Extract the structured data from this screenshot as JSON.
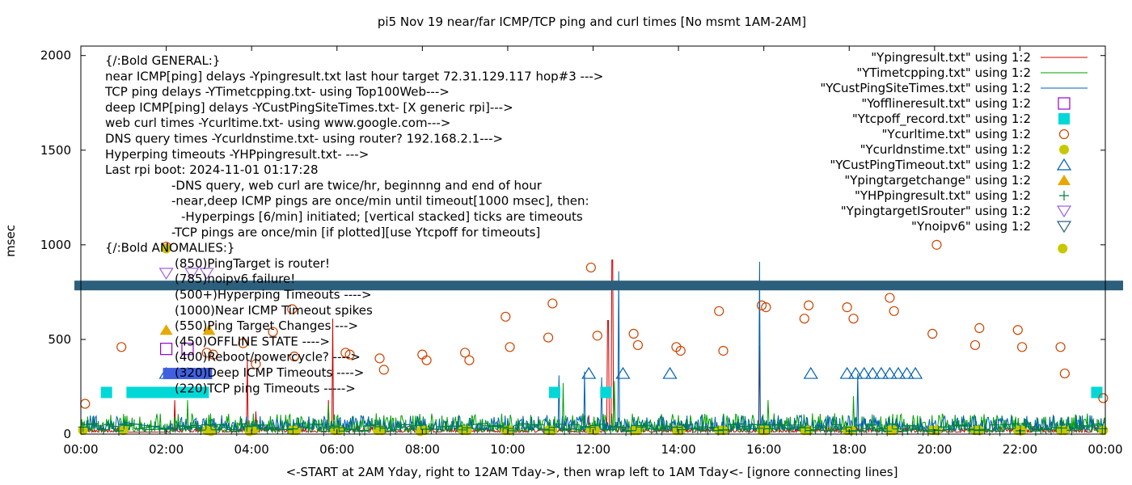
{
  "chart_data": {
    "type": "scatter",
    "title": "pi5 Nov 19  near/far ICMP/TCP ping and curl times [No msmt 1AM-2AM]",
    "xlabel": "<-START at 2AM Yday, right to 12AM Tday->, then wrap left to 1AM Tday<- [ignore connecting lines]",
    "ylabel": "msec",
    "xlim": [
      0,
      24
    ],
    "ylim": [
      0,
      2050
    ],
    "x_ticks": [
      {
        "v": 0,
        "label": "00:00"
      },
      {
        "v": 2,
        "label": "02:00"
      },
      {
        "v": 4,
        "label": "04:00"
      },
      {
        "v": 6,
        "label": "06:00"
      },
      {
        "v": 8,
        "label": "08:00"
      },
      {
        "v": 10,
        "label": "10:00"
      },
      {
        "v": 12,
        "label": "12:00"
      },
      {
        "v": 14,
        "label": "14:00"
      },
      {
        "v": 16,
        "label": "16:00"
      },
      {
        "v": 18,
        "label": "18:00"
      },
      {
        "v": 20,
        "label": "20:00"
      },
      {
        "v": 22,
        "label": "22:00"
      },
      {
        "v": 24,
        "label": "00:00"
      }
    ],
    "y_ticks": [
      {
        "v": 0,
        "label": "0"
      },
      {
        "v": 500,
        "label": "500"
      },
      {
        "v": 1000,
        "label": "1000"
      },
      {
        "v": 1500,
        "label": "1500"
      },
      {
        "v": 2000,
        "label": "2000"
      }
    ],
    "grid": false,
    "legend_position": "top-right",
    "annotations": [
      "{/:Bold GENERAL:}",
      "near ICMP[ping] delays -Ypingresult.txt last hour target 72.31.129.117 hop#3 --->",
      "TCP ping delays -YTimetcpping.txt- using Top100Web--->",
      "deep ICMP[ping] delays -YCustPingSiteTimes.txt- [X generic rpi]--->",
      "web curl times -Ycurltime.txt- using www.google.com--->",
      "DNS query times -Ycurldnstime.txt- using router? 192.168.2.1--->",
      "Hyperping timeouts -YHPpingresult.txt- --->",
      "Last rpi boot: 2024-11-01 01:17:28",
      "-DNS query, web curl are twice/hr, beginnng and end of hour",
      "-near,deep ICMP pings are once/min until timeout[1000 msec], then:",
      "-Hyperpings [6/min] initiated; [vertical stacked] ticks are timeouts",
      "-TCP pings are once/min [if plotted][use Ytcpoff for timeouts]",
      "{/:Bold ANOMALIES:}",
      "(850)PingTarget is router!",
      "(785)noipv6 failure!",
      "(500+)Hyperping Timeouts ---->",
      "(1000)Near ICMP Timeout spikes",
      "(550)Ping Target Changes --->",
      "(450)OFFLINE STATE ---->",
      "(400)Reboot/powercycle? ---->",
      "(320)Deep ICMP Timeouts ---->",
      "(220)TCP ping Timeouts ----->"
    ],
    "series": [
      {
        "name": "\"Ypingresult.txt\" using 1:2",
        "color": "#cc0000",
        "style": "line",
        "baseline_range": [
          10,
          40
        ],
        "spikes": [
          {
            "x": 2.2,
            "y": 180
          },
          {
            "x": 3.9,
            "y": 400
          },
          {
            "x": 4.1,
            "y": 120
          },
          {
            "x": 5.8,
            "y": 180
          },
          {
            "x": 5.9,
            "y": 610
          },
          {
            "x": 11.9,
            "y": 100
          },
          {
            "x": 12.35,
            "y": 600
          },
          {
            "x": 12.45,
            "y": 920
          },
          {
            "x": 15.9,
            "y": 470
          }
        ]
      },
      {
        "name": "\"YTimetcpping.txt\" using 1:2",
        "color": "#00a000",
        "style": "line",
        "baseline_range": [
          15,
          110
        ],
        "spikes": [
          {
            "x": 2.5,
            "y": 180
          },
          {
            "x": 5.8,
            "y": 160
          },
          {
            "x": 11.3,
            "y": 270
          },
          {
            "x": 12.5,
            "y": 280
          },
          {
            "x": 16.1,
            "y": 180
          },
          {
            "x": 18.1,
            "y": 200
          }
        ]
      },
      {
        "name": "\"YCustPingSiteTimes.txt\" using 1:2",
        "color": "#0060ad",
        "style": "line",
        "baseline_range": [
          20,
          100
        ],
        "spikes": [
          {
            "x": 11.2,
            "y": 310
          },
          {
            "x": 11.8,
            "y": 330
          },
          {
            "x": 12.2,
            "y": 300
          },
          {
            "x": 12.6,
            "y": 860
          },
          {
            "x": 15.9,
            "y": 910
          },
          {
            "x": 18.2,
            "y": 320
          }
        ]
      },
      {
        "name": "\"Yofflineresult.txt\" using 1:2",
        "color": "#9400d3",
        "style": "open-square",
        "points": [
          {
            "x": 2.0,
            "y": 450
          },
          {
            "x": 2.5,
            "y": 450
          }
        ]
      },
      {
        "name": "\"Ytcpoff_record.txt\" using 1:2",
        "color": "#00d8d8",
        "style": "filled-square",
        "points": [
          {
            "x": 0.6,
            "y": 220
          },
          {
            "x": 1.2,
            "y": 220
          },
          {
            "x": 1.5,
            "y": 220
          },
          {
            "x": 1.8,
            "y": 220
          },
          {
            "x": 2.1,
            "y": 220
          },
          {
            "x": 2.4,
            "y": 220
          },
          {
            "x": 2.7,
            "y": 220
          },
          {
            "x": 11.1,
            "y": 220
          },
          {
            "x": 12.3,
            "y": 220
          },
          {
            "x": 23.8,
            "y": 220
          }
        ]
      },
      {
        "name": "\"Ycurltime.txt\" using 1:2",
        "color": "#cc4400",
        "style": "open-circle",
        "points": [
          {
            "x": 0.1,
            "y": 160
          },
          {
            "x": 0.95,
            "y": 460
          },
          {
            "x": 2.0,
            "y": 990
          },
          {
            "x": 2.95,
            "y": 430
          },
          {
            "x": 3.1,
            "y": 420
          },
          {
            "x": 3.8,
            "y": 480
          },
          {
            "x": 4.1,
            "y": 370
          },
          {
            "x": 4.5,
            "y": 540
          },
          {
            "x": 4.95,
            "y": 660
          },
          {
            "x": 5.0,
            "y": 410
          },
          {
            "x": 6.2,
            "y": 430
          },
          {
            "x": 6.3,
            "y": 420
          },
          {
            "x": 7.0,
            "y": 400
          },
          {
            "x": 7.1,
            "y": 340
          },
          {
            "x": 8.0,
            "y": 420
          },
          {
            "x": 8.1,
            "y": 390
          },
          {
            "x": 9.0,
            "y": 430
          },
          {
            "x": 9.1,
            "y": 390
          },
          {
            "x": 9.95,
            "y": 620
          },
          {
            "x": 10.05,
            "y": 460
          },
          {
            "x": 10.95,
            "y": 510
          },
          {
            "x": 11.05,
            "y": 690
          },
          {
            "x": 11.95,
            "y": 880
          },
          {
            "x": 12.1,
            "y": 520
          },
          {
            "x": 12.95,
            "y": 530
          },
          {
            "x": 13.05,
            "y": 470
          },
          {
            "x": 13.95,
            "y": 460
          },
          {
            "x": 14.05,
            "y": 440
          },
          {
            "x": 14.95,
            "y": 650
          },
          {
            "x": 15.05,
            "y": 440
          },
          {
            "x": 15.95,
            "y": 680
          },
          {
            "x": 16.05,
            "y": 670
          },
          {
            "x": 16.95,
            "y": 610
          },
          {
            "x": 17.05,
            "y": 680
          },
          {
            "x": 17.95,
            "y": 670
          },
          {
            "x": 18.1,
            "y": 610
          },
          {
            "x": 18.95,
            "y": 720
          },
          {
            "x": 19.05,
            "y": 650
          },
          {
            "x": 19.95,
            "y": 530
          },
          {
            "x": 20.05,
            "y": 1000
          },
          {
            "x": 20.95,
            "y": 470
          },
          {
            "x": 21.05,
            "y": 560
          },
          {
            "x": 21.95,
            "y": 550
          },
          {
            "x": 22.05,
            "y": 460
          },
          {
            "x": 22.95,
            "y": 460
          },
          {
            "x": 23.05,
            "y": 320
          },
          {
            "x": 23.95,
            "y": 190
          }
        ]
      },
      {
        "name": "\"Ycurldnstime.txt\" using 1:2",
        "color": "#c8c800",
        "style": "filled-circle",
        "points": [
          {
            "x": 0.05,
            "y": 20
          },
          {
            "x": 1.0,
            "y": 20
          },
          {
            "x": 2.0,
            "y": 980
          },
          {
            "x": 2.95,
            "y": 20
          },
          {
            "x": 3.05,
            "y": 15
          },
          {
            "x": 3.95,
            "y": 15
          },
          {
            "x": 4.05,
            "y": 20
          },
          {
            "x": 4.95,
            "y": 20
          },
          {
            "x": 5.05,
            "y": 20
          },
          {
            "x": 5.95,
            "y": 20
          },
          {
            "x": 6.05,
            "y": 20
          },
          {
            "x": 6.95,
            "y": 20
          },
          {
            "x": 7.05,
            "y": 20
          },
          {
            "x": 7.95,
            "y": 15
          },
          {
            "x": 8.05,
            "y": 20
          },
          {
            "x": 8.95,
            "y": 20
          },
          {
            "x": 9.05,
            "y": 20
          },
          {
            "x": 9.95,
            "y": 20
          },
          {
            "x": 10.05,
            "y": 20
          },
          {
            "x": 10.95,
            "y": 20
          },
          {
            "x": 11.05,
            "y": 20
          },
          {
            "x": 11.95,
            "y": 25
          },
          {
            "x": 12.05,
            "y": 20
          },
          {
            "x": 12.95,
            "y": 20
          },
          {
            "x": 13.05,
            "y": 20
          },
          {
            "x": 13.95,
            "y": 20
          },
          {
            "x": 14.05,
            "y": 20
          },
          {
            "x": 14.95,
            "y": 20
          },
          {
            "x": 15.05,
            "y": 20
          },
          {
            "x": 15.95,
            "y": 20
          },
          {
            "x": 16.05,
            "y": 20
          },
          {
            "x": 16.95,
            "y": 20
          },
          {
            "x": 17.05,
            "y": 20
          },
          {
            "x": 17.95,
            "y": 20
          },
          {
            "x": 18.05,
            "y": 20
          },
          {
            "x": 18.95,
            "y": 20
          },
          {
            "x": 19.05,
            "y": 20
          },
          {
            "x": 19.95,
            "y": 20
          },
          {
            "x": 20.05,
            "y": 20
          },
          {
            "x": 20.95,
            "y": 20
          },
          {
            "x": 21.05,
            "y": 20
          },
          {
            "x": 21.95,
            "y": 20
          },
          {
            "x": 22.05,
            "y": 20
          },
          {
            "x": 22.95,
            "y": 20
          },
          {
            "x": 23.05,
            "y": 20
          },
          {
            "x": 23.95,
            "y": 20
          },
          {
            "x": 23.0,
            "y": 980
          }
        ]
      },
      {
        "name": "\"YCustPingTimeout.txt\" using 1:2",
        "color": "#0060ad",
        "style": "open-triangle-up",
        "points": [
          {
            "x": 2.0,
            "y": 320
          },
          {
            "x": 2.5,
            "y": 320
          },
          {
            "x": 11.9,
            "y": 320
          },
          {
            "x": 12.7,
            "y": 320
          },
          {
            "x": 13.8,
            "y": 320
          },
          {
            "x": 17.1,
            "y": 320
          },
          {
            "x": 17.95,
            "y": 320
          },
          {
            "x": 18.15,
            "y": 320
          },
          {
            "x": 18.35,
            "y": 320
          },
          {
            "x": 18.55,
            "y": 320
          },
          {
            "x": 18.75,
            "y": 320
          },
          {
            "x": 18.95,
            "y": 320
          },
          {
            "x": 19.15,
            "y": 320
          },
          {
            "x": 19.35,
            "y": 320
          },
          {
            "x": 19.55,
            "y": 320
          }
        ]
      },
      {
        "name": "\"Ypingtargetchange\" using 1:2",
        "color": "#e8a800",
        "style": "filled-triangle-up",
        "points": [
          {
            "x": 2.0,
            "y": 550
          },
          {
            "x": 3.0,
            "y": 550
          }
        ]
      },
      {
        "name": "\"YHPpingresult.txt\" using 1:2",
        "color": "#008040",
        "style": "plus",
        "points_note": "vertical stacked ticks near baseline (0-60) across the day"
      },
      {
        "name": "\"YpingtargetISrouter\" using 1:2",
        "color": "#a060e0",
        "style": "open-triangle-down",
        "points": [
          {
            "x": 2.0,
            "y": 850
          },
          {
            "x": 2.6,
            "y": 850
          },
          {
            "x": 2.95,
            "y": 850
          }
        ]
      },
      {
        "name": "\"Ynoipv6\" using 1:2",
        "color": "#2c5f7c",
        "style": "filled-band",
        "points": [
          {
            "x": 0.0,
            "y": 785
          },
          {
            "x": 24.0,
            "y": 785
          }
        ]
      }
    ]
  }
}
